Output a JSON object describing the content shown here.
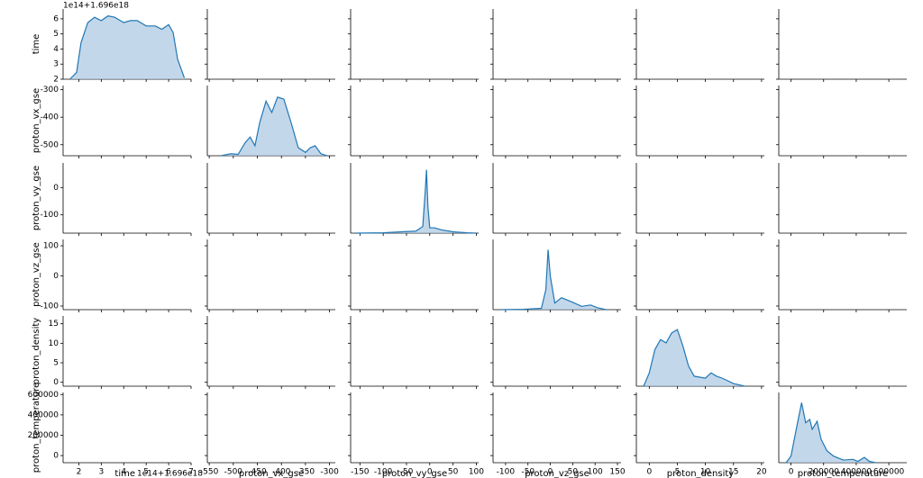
{
  "chart_data": {
    "type": "pairplot",
    "offset_label": "1e14+1.696e18",
    "color": "#1f77b4",
    "fill_color": "#a9c6e3",
    "variables": [
      {
        "name": "time",
        "xlim": [
          1.3,
          7
        ],
        "ylim": [
          2,
          6.65
        ],
        "xticks": [
          2,
          3,
          4,
          5,
          6,
          7
        ],
        "yticks": [
          2,
          3,
          4,
          5,
          6
        ],
        "kde": {
          "x": [
            1.6,
            1.9,
            2.1,
            2.4,
            2.7,
            3.0,
            3.3,
            3.6,
            4.0,
            4.3,
            4.6,
            5.0,
            5.4,
            5.7,
            6.0,
            6.2,
            6.4,
            6.7
          ],
          "density": [
            0,
            0.1,
            0.55,
            0.85,
            0.93,
            0.88,
            0.95,
            0.93,
            0.85,
            0.88,
            0.88,
            0.8,
            0.8,
            0.75,
            0.82,
            0.7,
            0.3,
            0.02
          ]
        }
      },
      {
        "name": "proton_vx_gse",
        "xlim": [
          -554,
          -288
        ],
        "ylim": [
          -540,
          -285
        ],
        "xticks": [
          -550,
          -500,
          -450,
          -400,
          -350,
          -300
        ],
        "yticks": [
          -500,
          -400,
          -300
        ],
        "kde": {
          "x": [
            -525,
            -505,
            -490,
            -475,
            -465,
            -455,
            -445,
            -432,
            -420,
            -408,
            -395,
            -380,
            -365,
            -350,
            -340,
            -330,
            -318,
            -305
          ],
          "density": [
            0,
            0.03,
            0.02,
            0.2,
            0.28,
            0.15,
            0.5,
            0.82,
            0.65,
            0.88,
            0.85,
            0.5,
            0.12,
            0.05,
            0.12,
            0.15,
            0.03,
            0
          ]
        }
      },
      {
        "name": "proton_vy_gse",
        "xlim": [
          -170,
          105
        ],
        "ylim": [
          -167,
          90
        ],
        "xticks": [
          -150,
          -100,
          -50,
          0,
          50,
          100
        ],
        "yticks": [
          -100,
          0
        ],
        "kde": {
          "x": [
            -160,
            -100,
            -60,
            -30,
            -15,
            -10,
            -7,
            -4,
            0,
            10,
            25,
            50,
            80,
            100
          ],
          "density": [
            0,
            0.005,
            0.02,
            0.03,
            0.1,
            0.6,
            0.95,
            0.4,
            0.08,
            0.08,
            0.05,
            0.02,
            0.005,
            0
          ]
        }
      },
      {
        "name": "proton_vz_gse",
        "xlim": [
          -128,
          158
        ],
        "ylim": [
          -112,
          121
        ],
        "xticks": [
          -100,
          -50,
          0,
          50,
          100,
          150
        ],
        "yticks": [
          -100,
          0,
          100
        ],
        "kde": {
          "x": [
            -110,
            -60,
            -20,
            -10,
            -5,
            0,
            10,
            25,
            50,
            70,
            90,
            105,
            125
          ],
          "density": [
            0,
            0.005,
            0.02,
            0.3,
            0.9,
            0.5,
            0.1,
            0.18,
            0.11,
            0.05,
            0.07,
            0.03,
            0
          ]
        }
      },
      {
        "name": "proton_density",
        "xlim": [
          -2.3,
          20.5
        ],
        "ylim": [
          -1,
          17
        ],
        "xticks": [
          0,
          5,
          10,
          15,
          20
        ],
        "yticks": [
          0,
          5,
          10,
          15
        ],
        "kde": {
          "x": [
            -1,
            0,
            1,
            2,
            3,
            4,
            5,
            6,
            7,
            8,
            10,
            11,
            12,
            13,
            15,
            17
          ],
          "density": [
            0,
            0.2,
            0.55,
            0.7,
            0.65,
            0.8,
            0.85,
            0.6,
            0.3,
            0.15,
            0.12,
            0.2,
            0.15,
            0.12,
            0.04,
            0
          ]
        }
      },
      {
        "name": "proton_temperature",
        "xlim": [
          -75000,
          710000
        ],
        "ylim": [
          -70000,
          620000
        ],
        "xticks": [
          0,
          200000,
          400000,
          600000
        ],
        "yticks": [
          0,
          200000,
          400000,
          600000
        ],
        "kde": {
          "x": [
            -30000,
            0,
            40000,
            65000,
            90000,
            115000,
            130000,
            160000,
            185000,
            220000,
            260000,
            320000,
            380000,
            410000,
            450000,
            480000,
            520000
          ],
          "density": [
            0,
            0.1,
            0.6,
            0.9,
            0.6,
            0.65,
            0.5,
            0.62,
            0.35,
            0.18,
            0.1,
            0.04,
            0.05,
            0.02,
            0.08,
            0.02,
            0
          ]
        }
      }
    ]
  }
}
